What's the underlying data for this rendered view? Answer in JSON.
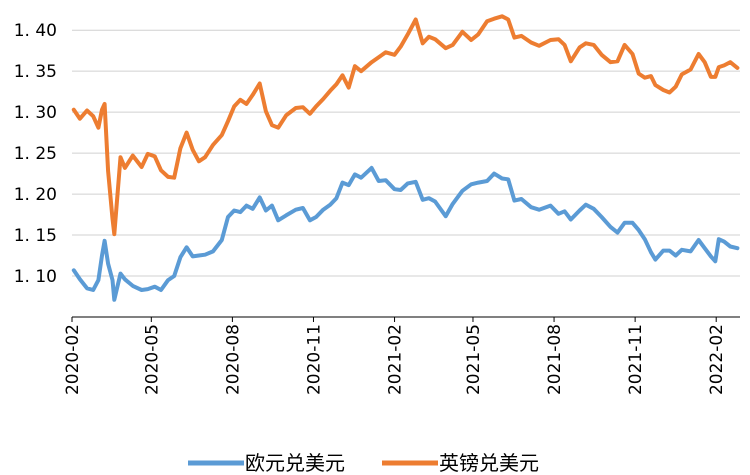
{
  "chart_data": {
    "type": "line",
    "title": "",
    "xlabel": "",
    "ylabel": "",
    "ylim": [
      1.05,
      1.41
    ],
    "yticks": [
      1.1,
      1.15,
      1.2,
      1.25,
      1.3,
      1.35,
      1.4
    ],
    "ytick_labels": [
      "1. 10",
      "1. 15",
      "1. 20",
      "1. 25",
      "1. 30",
      "1. 35",
      "1. 40"
    ],
    "xlim": [
      "2020-02-01",
      "2022-02-28"
    ],
    "xticks": [
      "2020-02",
      "2020-05",
      "2020-08",
      "2020-11",
      "2021-02",
      "2021-05",
      "2021-08",
      "2021-11",
      "2022-02"
    ],
    "grid": "horizontal",
    "legend_position": "bottom",
    "series": [
      {
        "name": "欧元兑美元",
        "color": "#5B9BD5",
        "points": [
          [
            "2020-02-03",
            1.107
          ],
          [
            "2020-02-10",
            1.096
          ],
          [
            "2020-02-18",
            1.085
          ],
          [
            "2020-02-25",
            1.083
          ],
          [
            "2020-03-02",
            1.095
          ],
          [
            "2020-03-06",
            1.125
          ],
          [
            "2020-03-09",
            1.143
          ],
          [
            "2020-03-13",
            1.115
          ],
          [
            "2020-03-18",
            1.095
          ],
          [
            "2020-03-20",
            1.071
          ],
          [
            "2020-03-27",
            1.103
          ],
          [
            "2020-04-01",
            1.096
          ],
          [
            "2020-04-10",
            1.088
          ],
          [
            "2020-04-20",
            1.083
          ],
          [
            "2020-04-27",
            1.084
          ],
          [
            "2020-05-05",
            1.087
          ],
          [
            "2020-05-12",
            1.083
          ],
          [
            "2020-05-20",
            1.095
          ],
          [
            "2020-05-27",
            1.1
          ],
          [
            "2020-06-03",
            1.123
          ],
          [
            "2020-06-10",
            1.135
          ],
          [
            "2020-06-17",
            1.124
          ],
          [
            "2020-06-24",
            1.125
          ],
          [
            "2020-07-01",
            1.126
          ],
          [
            "2020-07-10",
            1.13
          ],
          [
            "2020-07-20",
            1.144
          ],
          [
            "2020-07-27",
            1.172
          ],
          [
            "2020-08-03",
            1.18
          ],
          [
            "2020-08-10",
            1.178
          ],
          [
            "2020-08-17",
            1.186
          ],
          [
            "2020-08-24",
            1.182
          ],
          [
            "2020-09-01",
            1.196
          ],
          [
            "2020-09-08",
            1.18
          ],
          [
            "2020-09-15",
            1.186
          ],
          [
            "2020-09-22",
            1.168
          ],
          [
            "2020-10-01",
            1.174
          ],
          [
            "2020-10-12",
            1.181
          ],
          [
            "2020-10-20",
            1.183
          ],
          [
            "2020-10-28",
            1.168
          ],
          [
            "2020-11-04",
            1.172
          ],
          [
            "2020-11-12",
            1.181
          ],
          [
            "2020-11-20",
            1.187
          ],
          [
            "2020-11-27",
            1.195
          ],
          [
            "2020-12-04",
            1.214
          ],
          [
            "2020-12-11",
            1.211
          ],
          [
            "2020-12-18",
            1.224
          ],
          [
            "2020-12-25",
            1.22
          ],
          [
            "2021-01-06",
            1.232
          ],
          [
            "2021-01-14",
            1.216
          ],
          [
            "2021-01-22",
            1.217
          ],
          [
            "2021-02-01",
            1.206
          ],
          [
            "2021-02-08",
            1.205
          ],
          [
            "2021-02-16",
            1.213
          ],
          [
            "2021-02-25",
            1.215
          ],
          [
            "2021-03-05",
            1.193
          ],
          [
            "2021-03-12",
            1.195
          ],
          [
            "2021-03-19",
            1.191
          ],
          [
            "2021-03-31",
            1.173
          ],
          [
            "2021-04-08",
            1.188
          ],
          [
            "2021-04-19",
            1.204
          ],
          [
            "2021-04-29",
            1.212
          ],
          [
            "2021-05-07",
            1.214
          ],
          [
            "2021-05-17",
            1.216
          ],
          [
            "2021-05-25",
            1.225
          ],
          [
            "2021-06-03",
            1.219
          ],
          [
            "2021-06-10",
            1.218
          ],
          [
            "2021-06-17",
            1.192
          ],
          [
            "2021-06-25",
            1.194
          ],
          [
            "2021-07-06",
            1.184
          ],
          [
            "2021-07-15",
            1.181
          ],
          [
            "2021-07-28",
            1.186
          ],
          [
            "2021-08-06",
            1.176
          ],
          [
            "2021-08-13",
            1.179
          ],
          [
            "2021-08-20",
            1.169
          ],
          [
            "2021-08-30",
            1.18
          ],
          [
            "2021-09-06",
            1.187
          ],
          [
            "2021-09-15",
            1.182
          ],
          [
            "2021-09-24",
            1.172
          ],
          [
            "2021-10-04",
            1.16
          ],
          [
            "2021-10-12",
            1.153
          ],
          [
            "2021-10-20",
            1.165
          ],
          [
            "2021-10-29",
            1.165
          ],
          [
            "2021-11-05",
            1.156
          ],
          [
            "2021-11-12",
            1.145
          ],
          [
            "2021-11-19",
            1.129
          ],
          [
            "2021-11-24",
            1.12
          ],
          [
            "2021-12-03",
            1.131
          ],
          [
            "2021-12-10",
            1.131
          ],
          [
            "2021-12-17",
            1.125
          ],
          [
            "2021-12-24",
            1.132
          ],
          [
            "2022-01-03",
            1.13
          ],
          [
            "2022-01-12",
            1.144
          ],
          [
            "2022-01-19",
            1.134
          ],
          [
            "2022-01-26",
            1.124
          ],
          [
            "2022-01-31",
            1.118
          ],
          [
            "2022-02-04",
            1.145
          ],
          [
            "2022-02-10",
            1.142
          ],
          [
            "2022-02-17",
            1.136
          ],
          [
            "2022-02-25",
            1.134
          ]
        ]
      },
      {
        "name": "英镑兑美元",
        "color": "#ED7D31",
        "points": [
          [
            "2020-02-03",
            1.303
          ],
          [
            "2020-02-10",
            1.292
          ],
          [
            "2020-02-18",
            1.302
          ],
          [
            "2020-02-25",
            1.295
          ],
          [
            "2020-03-02",
            1.281
          ],
          [
            "2020-03-06",
            1.303
          ],
          [
            "2020-03-09",
            1.31
          ],
          [
            "2020-03-13",
            1.228
          ],
          [
            "2020-03-18",
            1.17
          ],
          [
            "2020-03-20",
            1.151
          ],
          [
            "2020-03-27",
            1.245
          ],
          [
            "2020-04-01",
            1.232
          ],
          [
            "2020-04-10",
            1.247
          ],
          [
            "2020-04-20",
            1.233
          ],
          [
            "2020-04-27",
            1.249
          ],
          [
            "2020-05-05",
            1.246
          ],
          [
            "2020-05-12",
            1.229
          ],
          [
            "2020-05-20",
            1.221
          ],
          [
            "2020-05-27",
            1.22
          ],
          [
            "2020-06-03",
            1.256
          ],
          [
            "2020-06-10",
            1.275
          ],
          [
            "2020-06-17",
            1.254
          ],
          [
            "2020-06-24",
            1.24
          ],
          [
            "2020-07-01",
            1.245
          ],
          [
            "2020-07-10",
            1.26
          ],
          [
            "2020-07-20",
            1.272
          ],
          [
            "2020-07-27",
            1.289
          ],
          [
            "2020-08-03",
            1.307
          ],
          [
            "2020-08-10",
            1.315
          ],
          [
            "2020-08-17",
            1.31
          ],
          [
            "2020-08-24",
            1.321
          ],
          [
            "2020-09-01",
            1.335
          ],
          [
            "2020-09-08",
            1.301
          ],
          [
            "2020-09-15",
            1.284
          ],
          [
            "2020-09-22",
            1.281
          ],
          [
            "2020-10-01",
            1.296
          ],
          [
            "2020-10-12",
            1.305
          ],
          [
            "2020-10-20",
            1.306
          ],
          [
            "2020-10-28",
            1.298
          ],
          [
            "2020-11-04",
            1.307
          ],
          [
            "2020-11-12",
            1.316
          ],
          [
            "2020-11-20",
            1.326
          ],
          [
            "2020-11-27",
            1.334
          ],
          [
            "2020-12-04",
            1.345
          ],
          [
            "2020-12-11",
            1.33
          ],
          [
            "2020-12-18",
            1.356
          ],
          [
            "2020-12-25",
            1.35
          ],
          [
            "2021-01-06",
            1.361
          ],
          [
            "2021-01-14",
            1.367
          ],
          [
            "2021-01-22",
            1.373
          ],
          [
            "2021-02-01",
            1.37
          ],
          [
            "2021-02-08",
            1.38
          ],
          [
            "2021-02-16",
            1.395
          ],
          [
            "2021-02-25",
            1.413
          ],
          [
            "2021-03-05",
            1.384
          ],
          [
            "2021-03-12",
            1.392
          ],
          [
            "2021-03-19",
            1.389
          ],
          [
            "2021-03-31",
            1.378
          ],
          [
            "2021-04-08",
            1.382
          ],
          [
            "2021-04-19",
            1.398
          ],
          [
            "2021-04-29",
            1.388
          ],
          [
            "2021-05-07",
            1.395
          ],
          [
            "2021-05-17",
            1.411
          ],
          [
            "2021-05-25",
            1.414
          ],
          [
            "2021-06-03",
            1.417
          ],
          [
            "2021-06-10",
            1.413
          ],
          [
            "2021-06-17",
            1.391
          ],
          [
            "2021-06-25",
            1.393
          ],
          [
            "2021-07-06",
            1.385
          ],
          [
            "2021-07-15",
            1.381
          ],
          [
            "2021-07-28",
            1.388
          ],
          [
            "2021-08-06",
            1.389
          ],
          [
            "2021-08-13",
            1.382
          ],
          [
            "2021-08-20",
            1.362
          ],
          [
            "2021-08-30",
            1.379
          ],
          [
            "2021-09-06",
            1.384
          ],
          [
            "2021-09-15",
            1.382
          ],
          [
            "2021-09-24",
            1.37
          ],
          [
            "2021-10-04",
            1.361
          ],
          [
            "2021-10-12",
            1.362
          ],
          [
            "2021-10-20",
            1.382
          ],
          [
            "2021-10-29",
            1.371
          ],
          [
            "2021-11-05",
            1.347
          ],
          [
            "2021-11-12",
            1.342
          ],
          [
            "2021-11-19",
            1.344
          ],
          [
            "2021-11-24",
            1.333
          ],
          [
            "2021-12-03",
            1.327
          ],
          [
            "2021-12-10",
            1.324
          ],
          [
            "2021-12-17",
            1.331
          ],
          [
            "2021-12-24",
            1.346
          ],
          [
            "2022-01-03",
            1.352
          ],
          [
            "2022-01-12",
            1.371
          ],
          [
            "2022-01-19",
            1.361
          ],
          [
            "2022-01-26",
            1.343
          ],
          [
            "2022-01-31",
            1.343
          ],
          [
            "2022-02-04",
            1.355
          ],
          [
            "2022-02-10",
            1.357
          ],
          [
            "2022-02-17",
            1.361
          ],
          [
            "2022-02-25",
            1.354
          ]
        ]
      }
    ]
  }
}
